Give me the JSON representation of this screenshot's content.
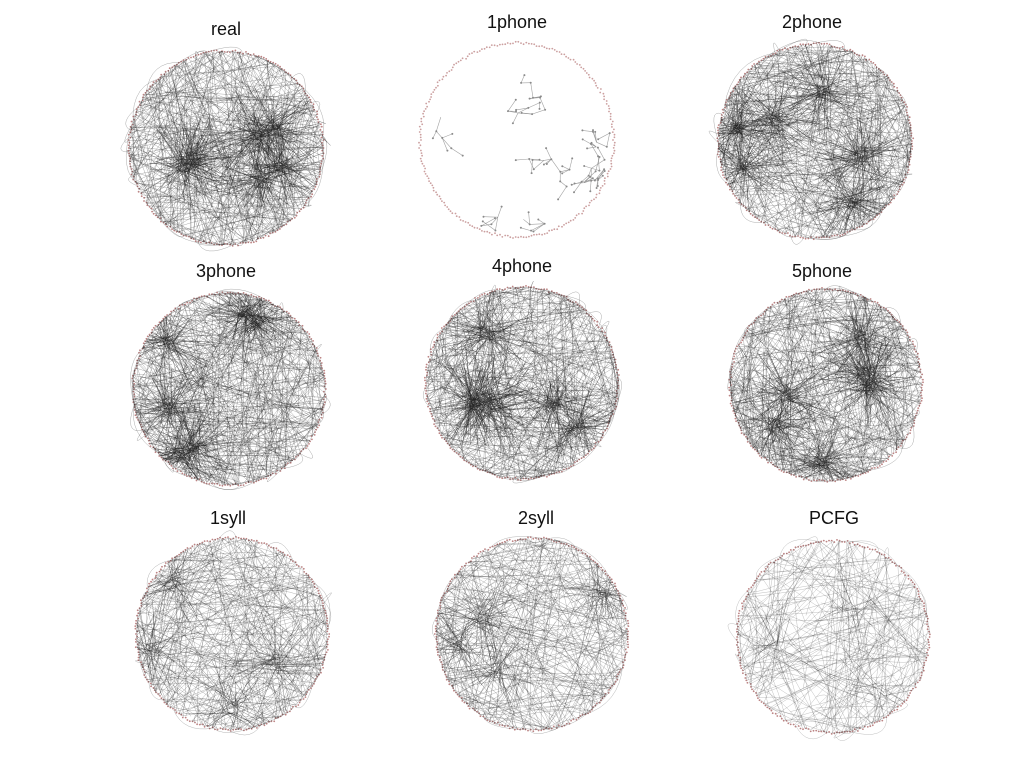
{
  "panels": [
    {
      "id": "real",
      "title": "real",
      "kind": "dense"
    },
    {
      "id": "1phone",
      "title": "1phone",
      "kind": "trees"
    },
    {
      "id": "2phone",
      "title": "2phone",
      "kind": "dense"
    },
    {
      "id": "3phone",
      "title": "3phone",
      "kind": "dense"
    },
    {
      "id": "4phone",
      "title": "4phone",
      "kind": "dense"
    },
    {
      "id": "5phone",
      "title": "5phone",
      "kind": "dense"
    },
    {
      "id": "1syll",
      "title": "1syll",
      "kind": "medium"
    },
    {
      "id": "2syll",
      "title": "2syll",
      "kind": "medium"
    },
    {
      "id": "PCFG",
      "title": "PCFG",
      "kind": "sparse"
    }
  ],
  "colors": {
    "edge": "#222222",
    "node": "#a05050",
    "tree_edge": "#8a8a8a",
    "title": "#111111"
  }
}
